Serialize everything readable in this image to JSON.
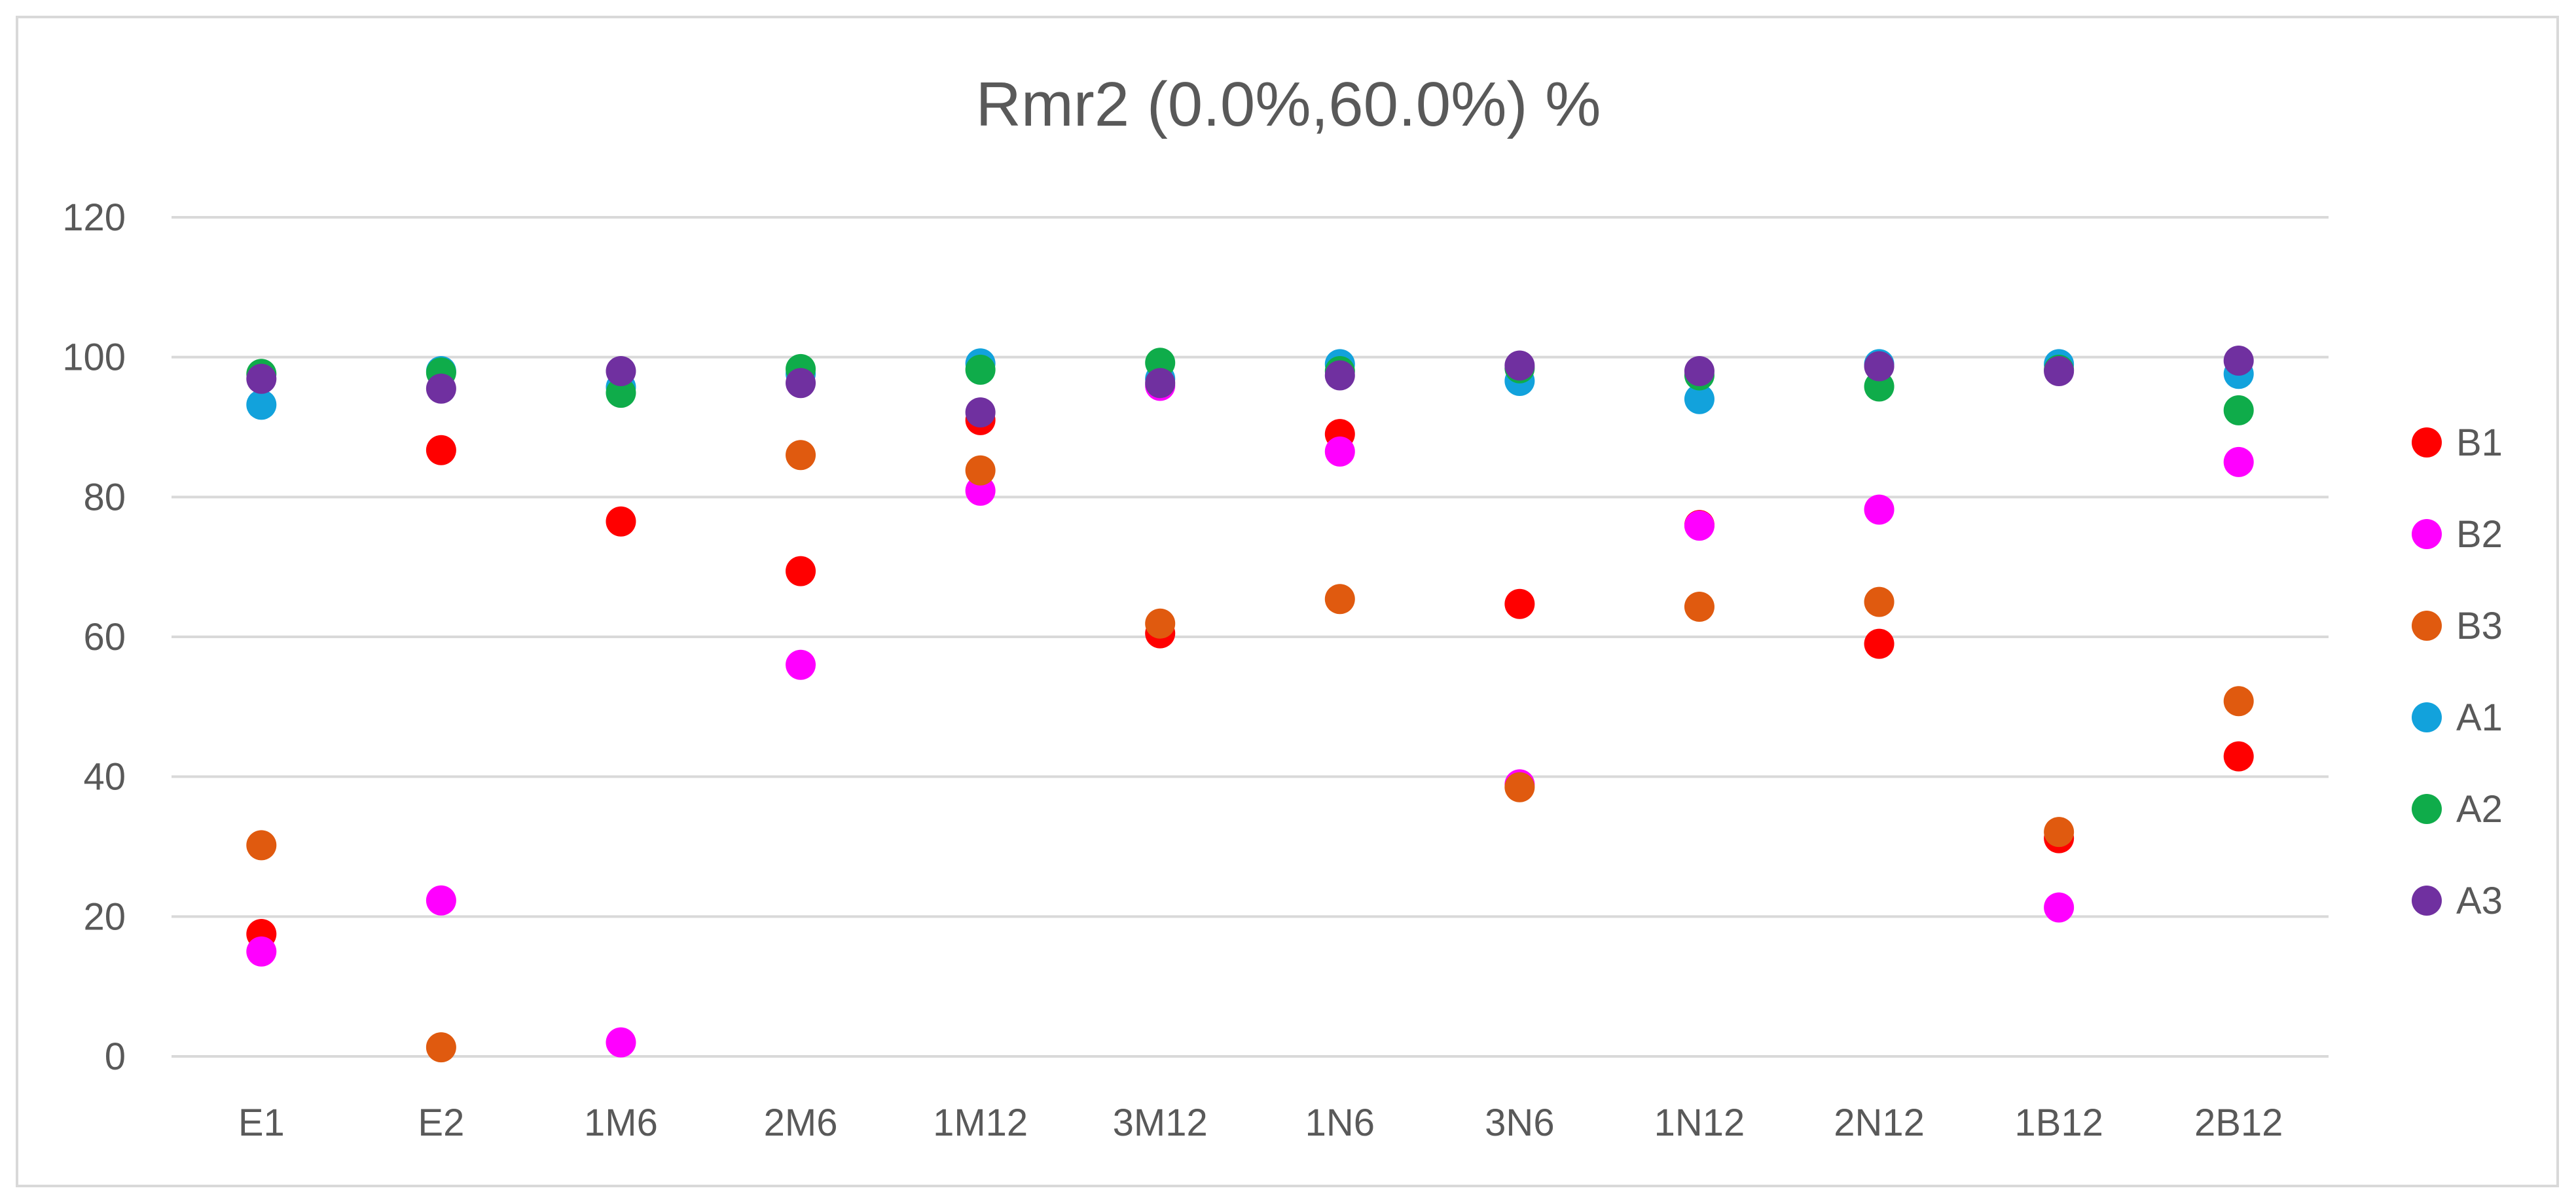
{
  "chart_data": {
    "type": "scatter",
    "title": "Rmr2 (0.0%,60.0%)  %",
    "xlabel": "",
    "ylabel": "",
    "ylim": [
      0,
      120
    ],
    "yticks": [
      0,
      20,
      40,
      60,
      80,
      100,
      120
    ],
    "grid": true,
    "legend_position": "right",
    "categories": [
      "E1",
      "E2",
      "1M6",
      "2M6",
      "1M12",
      "3M12",
      "1N6",
      "3N6",
      "1N12",
      "2N12",
      "1B12",
      "2B12"
    ],
    "series": [
      {
        "name": "B1",
        "color": "#ff0000",
        "values": [
          17.5,
          86.7,
          76.5,
          69.4,
          91.0,
          60.5,
          89.0,
          64.7,
          76.0,
          59.0,
          31.2,
          42.9
        ]
      },
      {
        "name": "B2",
        "color": "#ff00ff",
        "values": [
          15.0,
          22.3,
          2.0,
          56.0,
          80.9,
          95.9,
          86.5,
          38.9,
          75.9,
          78.2,
          21.3,
          85.0
        ]
      },
      {
        "name": "B3",
        "color": "#e05a0f",
        "values": [
          30.2,
          1.3,
          null,
          86.0,
          83.8,
          61.9,
          65.4,
          38.5,
          64.3,
          65.0,
          32.1,
          50.8
        ]
      },
      {
        "name": "A1",
        "color": "#12a2dc",
        "values": [
          93.2,
          98.0,
          95.7,
          97.6,
          99.1,
          96.9,
          99.0,
          96.6,
          94.0,
          99.0,
          99.0,
          97.6
        ]
      },
      {
        "name": "A2",
        "color": "#0fac4a",
        "values": [
          97.6,
          97.8,
          94.9,
          98.3,
          98.2,
          99.2,
          98.0,
          98.4,
          97.4,
          95.8,
          98.2,
          92.4
        ]
      },
      {
        "name": "A3",
        "color": "#7030a0",
        "values": [
          96.9,
          95.5,
          98.0,
          96.3,
          92.1,
          96.3,
          97.4,
          98.8,
          98.0,
          98.7,
          98.0,
          99.5
        ]
      }
    ]
  }
}
